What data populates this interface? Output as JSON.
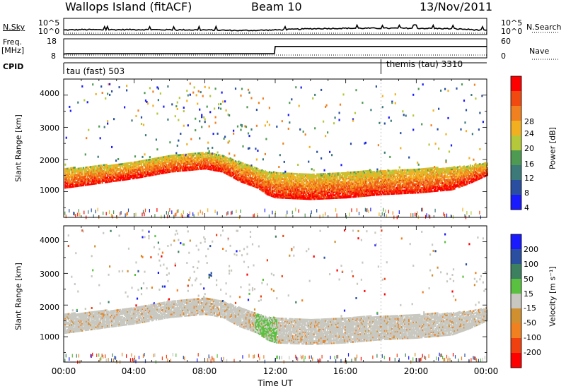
{
  "header": {
    "title": "Wallops Island (fitACF)",
    "beam": "Beam 10",
    "date": "13/Nov/2011"
  },
  "colors": {
    "power_scale": [
      "#1a1aff",
      "#2a4fa0",
      "#3c7a7a",
      "#4f9a52",
      "#b5c83a",
      "#f2b020",
      "#f08020",
      "#f04a10",
      "#ff0000"
    ],
    "velocity_scale": [
      "#1a1aff",
      "#2a4fa0",
      "#3c8060",
      "#5ac040",
      "#c8c8c0",
      "#d09030",
      "#f08020",
      "#f04010",
      "#ff0000"
    ],
    "ground_scatter": "#c8c8c0"
  },
  "chart_data": [
    {
      "type": "line",
      "name": "noise-panel",
      "left_label": "N.Sky",
      "right_label": "N.Search",
      "left_ticks": [
        "10^5",
        "10^0"
      ],
      "right_ticks": [
        "10^5",
        "10^0"
      ],
      "xlim": [
        0,
        24
      ],
      "series": [
        {
          "name": "N.Sky",
          "x": [
            0,
            1,
            2,
            4,
            6,
            8,
            10,
            11,
            12,
            14,
            16,
            18,
            20,
            22,
            23,
            24
          ],
          "y": [
            0.35,
            0.4,
            0.38,
            0.4,
            0.38,
            0.36,
            0.3,
            0.32,
            0.36,
            0.5,
            0.55,
            0.55,
            0.55,
            0.5,
            0.42,
            0.3
          ]
        }
      ]
    },
    {
      "type": "line",
      "name": "frequency-panel",
      "left_label": "Freq.",
      "left_unit": "[MHz]",
      "right_label": "Nave",
      "left_ticks": [
        "18",
        "8"
      ],
      "right_ticks": [
        "60",
        "0"
      ],
      "xlim": [
        0,
        24
      ],
      "ylim": [
        8,
        18
      ],
      "series": [
        {
          "name": "Freq.",
          "x": [
            0,
            0.2,
            11.95,
            12.0,
            24
          ],
          "y": [
            10.0,
            10.2,
            10.2,
            14.0,
            14.0
          ]
        }
      ]
    },
    {
      "type": "table",
      "name": "cpid-panel",
      "label": "CPID",
      "segments": [
        {
          "start": 0,
          "end": 18,
          "text": "tau (fast) 503"
        },
        {
          "start": 18,
          "end": 24,
          "text": "themis (tau) 3310"
        }
      ]
    },
    {
      "type": "heatmap",
      "name": "power-panel",
      "ylabel": "Slant Range [km]",
      "xlim": [
        0,
        24
      ],
      "ylim": [
        200,
        4500
      ],
      "yticks": [
        1000,
        2000,
        3000,
        4000
      ],
      "colorbar_label": "Power [dB]",
      "colorbar_ticks": [
        4,
        8,
        12,
        16,
        20,
        24,
        28
      ],
      "main_band": {
        "x": [
          0,
          2,
          4,
          6,
          8,
          9,
          10,
          11,
          11.5,
          12,
          14,
          16,
          18,
          20,
          22,
          23,
          24
        ],
        "lower_km": [
          1100,
          1250,
          1400,
          1600,
          1700,
          1600,
          1300,
          1100,
          900,
          800,
          750,
          800,
          900,
          950,
          1050,
          1250,
          1500
        ],
        "upper_km": [
          1700,
          1800,
          1900,
          2100,
          2200,
          2100,
          1900,
          1700,
          1600,
          1600,
          1550,
          1600,
          1650,
          1700,
          1750,
          1800,
          1900
        ]
      }
    },
    {
      "type": "heatmap",
      "name": "velocity-panel",
      "ylabel": "Slant Range [km]",
      "xlabel": "Time UT",
      "xlim": [
        0,
        24
      ],
      "ylim": [
        200,
        4500
      ],
      "yticks": [
        1000,
        2000,
        3000,
        4000
      ],
      "xticks": [
        "00:00",
        "04:00",
        "08:00",
        "12:00",
        "16:00",
        "20:00",
        "00:00"
      ],
      "colorbar_label": "Velocity [m s⁻¹]",
      "colorbar_ticks": [
        200,
        100,
        50,
        15,
        -15,
        -50,
        -100,
        -200
      ]
    }
  ]
}
